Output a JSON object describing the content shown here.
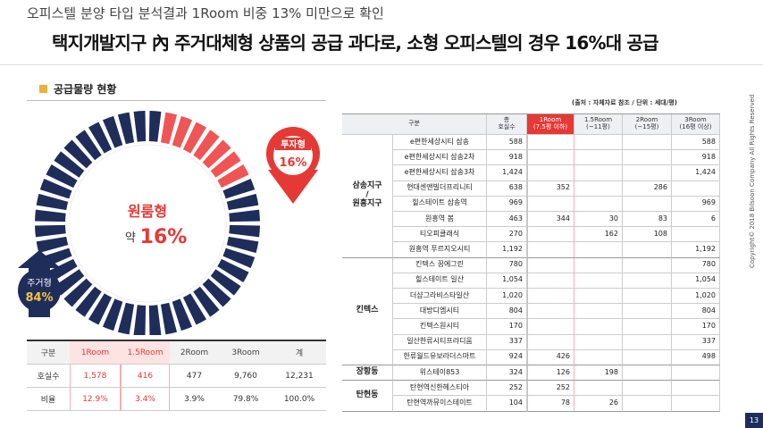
{
  "header": {
    "subtitle": "오피스텔 분양 타입 분석결과 1Room 비중 13% 미만으로 확인",
    "title": "택지개발지구 內 주거대체형 상품의 공급 과다로, 소형 오피스텔의 경우 16%대 공급"
  },
  "section_title": "공급물량 현황",
  "source": "(출처 : 자체자료 참조 / 단위 : 세대/평)",
  "donut": {
    "center_label": "원룸형",
    "center_prefix": "약",
    "center_value": "16%",
    "invest_label": "투자형",
    "invest_value": "16%",
    "residential_label": "주거형",
    "residential_value": "84%"
  },
  "summary_table": {
    "headers": [
      "구분",
      "1Room",
      "1.5Room",
      "2Room",
      "3Room",
      "계"
    ],
    "rows": [
      [
        "호실수",
        "1,578",
        "416",
        "477",
        "9,760",
        "12,231"
      ],
      [
        "비율",
        "12.9%",
        "3.4%",
        "3.9%",
        "79.8%",
        "100.0%"
      ]
    ]
  },
  "supply_table": {
    "headers": [
      [
        "구분"
      ],
      [
        "총",
        "호실수"
      ],
      [
        "1Room",
        "(7.5평 이하)"
      ],
      [
        "1.5Room",
        "(~11평)"
      ],
      [
        "2Room",
        "(~15평)"
      ],
      [
        "3Room",
        "(16평 이상)"
      ]
    ],
    "groups": [
      {
        "name": [
          "삼송지구",
          "/",
          "원흥지구"
        ],
        "rows": [
          [
            "e편한세상시티 삼송",
            "588",
            null,
            null,
            null,
            "588"
          ],
          [
            "e편한세상시티 삼송2차",
            "918",
            null,
            null,
            null,
            "918"
          ],
          [
            "e편한세상시티 삼송3차",
            "1,424",
            null,
            null,
            null,
            "1,424"
          ],
          [
            "현대센앤빌더프리니티",
            "638",
            "352",
            null,
            "286",
            null
          ],
          [
            "힐스테이트 삼송역",
            "969",
            null,
            null,
            null,
            "969"
          ],
          [
            "원흥역 봄",
            "463",
            "344",
            "30",
            "83",
            "6"
          ],
          [
            "티오피클래식",
            "270",
            null,
            "162",
            "108",
            null
          ],
          [
            "원흥역 푸르지오시티",
            "1,192",
            null,
            null,
            null,
            "1,192"
          ]
        ]
      },
      {
        "name": [
          "킨텍스"
        ],
        "rows": [
          [
            "킨텍스 꿈에그린",
            "780",
            null,
            null,
            null,
            "780"
          ],
          [
            "힐스테이트 일산",
            "1,054",
            null,
            null,
            null,
            "1,054"
          ],
          [
            "더샵그라비스타일산",
            "1,020",
            null,
            null,
            null,
            "1,020"
          ],
          [
            "대방디엠시티",
            "804",
            null,
            null,
            null,
            "804"
          ],
          [
            "킨텍스원시티",
            "170",
            null,
            null,
            null,
            "170"
          ],
          [
            "일산한류시티프라디움",
            "337",
            null,
            null,
            null,
            "337"
          ],
          [
            "한류월드유보라더스마트",
            "924",
            "426",
            null,
            null,
            "498"
          ]
        ]
      },
      {
        "name": [
          "장항동"
        ],
        "rows": [
          [
            "위스테이853",
            "324",
            "126",
            "198",
            null,
            null
          ]
        ]
      },
      {
        "name": [
          "탄현동"
        ],
        "rows": [
          [
            "탄현역신한헤스티아",
            "252",
            "252",
            null,
            null,
            null
          ],
          [
            "탄현역까뮤이스테이트",
            "104",
            "78",
            "26",
            null,
            null
          ]
        ]
      }
    ]
  },
  "footer": {
    "copyright": "Copyright© 2018 Bilsoon Company All Rights Reserved",
    "page": "13"
  }
}
